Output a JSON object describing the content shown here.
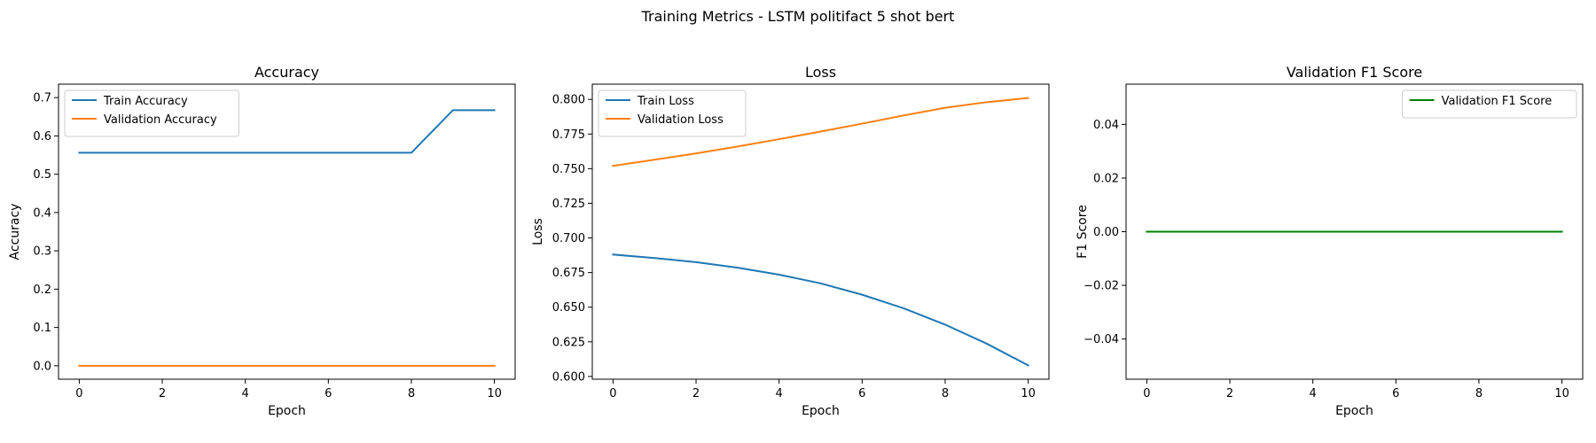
{
  "figure": {
    "suptitle": "Training Metrics - LSTM politifact 5 shot bert"
  },
  "chart_data": [
    {
      "type": "line",
      "title": "Accuracy",
      "xlabel": "Epoch",
      "ylabel": "Accuracy",
      "xlim": [
        -0.5,
        10.5
      ],
      "ylim": [
        -0.035,
        0.735
      ],
      "xticks": [
        0,
        2,
        4,
        6,
        8,
        10
      ],
      "xtick_labels": [
        "0",
        "2",
        "4",
        "6",
        "8",
        "10"
      ],
      "yticks": [
        0.0,
        0.1,
        0.2,
        0.3,
        0.4,
        0.5,
        0.6,
        0.7
      ],
      "ytick_labels": [
        "0.0",
        "0.1",
        "0.2",
        "0.3",
        "0.4",
        "0.5",
        "0.6",
        "0.7"
      ],
      "grid": false,
      "legend": "upper-left",
      "x": [
        0,
        1,
        2,
        3,
        4,
        5,
        6,
        7,
        8,
        9,
        10
      ],
      "series": [
        {
          "name": "Train Accuracy",
          "color": "#1f77b4",
          "values": [
            0.556,
            0.556,
            0.556,
            0.556,
            0.556,
            0.556,
            0.556,
            0.556,
            0.556,
            0.667,
            0.667
          ]
        },
        {
          "name": "Validation Accuracy",
          "color": "#ff7f0e",
          "values": [
            0,
            0,
            0,
            0,
            0,
            0,
            0,
            0,
            0,
            0,
            0
          ]
        }
      ]
    },
    {
      "type": "line",
      "title": "Loss",
      "xlabel": "Epoch",
      "ylabel": "Loss",
      "xlim": [
        -0.5,
        10.5
      ],
      "ylim": [
        0.598,
        0.811
      ],
      "xticks": [
        0,
        2,
        4,
        6,
        8,
        10
      ],
      "xtick_labels": [
        "0",
        "2",
        "4",
        "6",
        "8",
        "10"
      ],
      "yticks": [
        0.6,
        0.625,
        0.65,
        0.675,
        0.7,
        0.725,
        0.75,
        0.775,
        0.8
      ],
      "ytick_labels": [
        "0.600",
        "0.625",
        "0.650",
        "0.675",
        "0.700",
        "0.725",
        "0.750",
        "0.775",
        "0.800"
      ],
      "grid": false,
      "legend": "upper-left",
      "x": [
        0,
        1,
        2,
        3,
        4,
        5,
        6,
        7,
        8,
        9,
        10
      ],
      "series": [
        {
          "name": "Train Loss",
          "color": "#1f77b4",
          "values": [
            0.688,
            0.6855,
            0.6825,
            0.6785,
            0.6735,
            0.6672,
            0.659,
            0.6492,
            0.6374,
            0.6237,
            0.608
          ]
        },
        {
          "name": "Validation Loss",
          "color": "#ff7f0e",
          "values": [
            0.752,
            0.7565,
            0.761,
            0.766,
            0.7713,
            0.7768,
            0.7825,
            0.7884,
            0.794,
            0.798,
            0.801
          ]
        }
      ]
    },
    {
      "type": "line",
      "title": "Validation F1 Score",
      "xlabel": "Epoch",
      "ylabel": "F1 Score",
      "xlim": [
        -0.5,
        10.5
      ],
      "ylim": [
        -0.055,
        0.055
      ],
      "xticks": [
        0,
        2,
        4,
        6,
        8,
        10
      ],
      "xtick_labels": [
        "0",
        "2",
        "4",
        "6",
        "8",
        "10"
      ],
      "yticks": [
        -0.04,
        -0.02,
        0.0,
        0.02,
        0.04
      ],
      "ytick_labels": [
        "−0.04",
        "−0.02",
        "0.00",
        "0.02",
        "0.04"
      ],
      "grid": false,
      "legend": "upper-right",
      "x": [
        0,
        1,
        2,
        3,
        4,
        5,
        6,
        7,
        8,
        9,
        10
      ],
      "series": [
        {
          "name": "Validation F1 Score",
          "color": "#008000",
          "values": [
            0,
            0,
            0,
            0,
            0,
            0,
            0,
            0,
            0,
            0,
            0
          ]
        }
      ]
    }
  ]
}
